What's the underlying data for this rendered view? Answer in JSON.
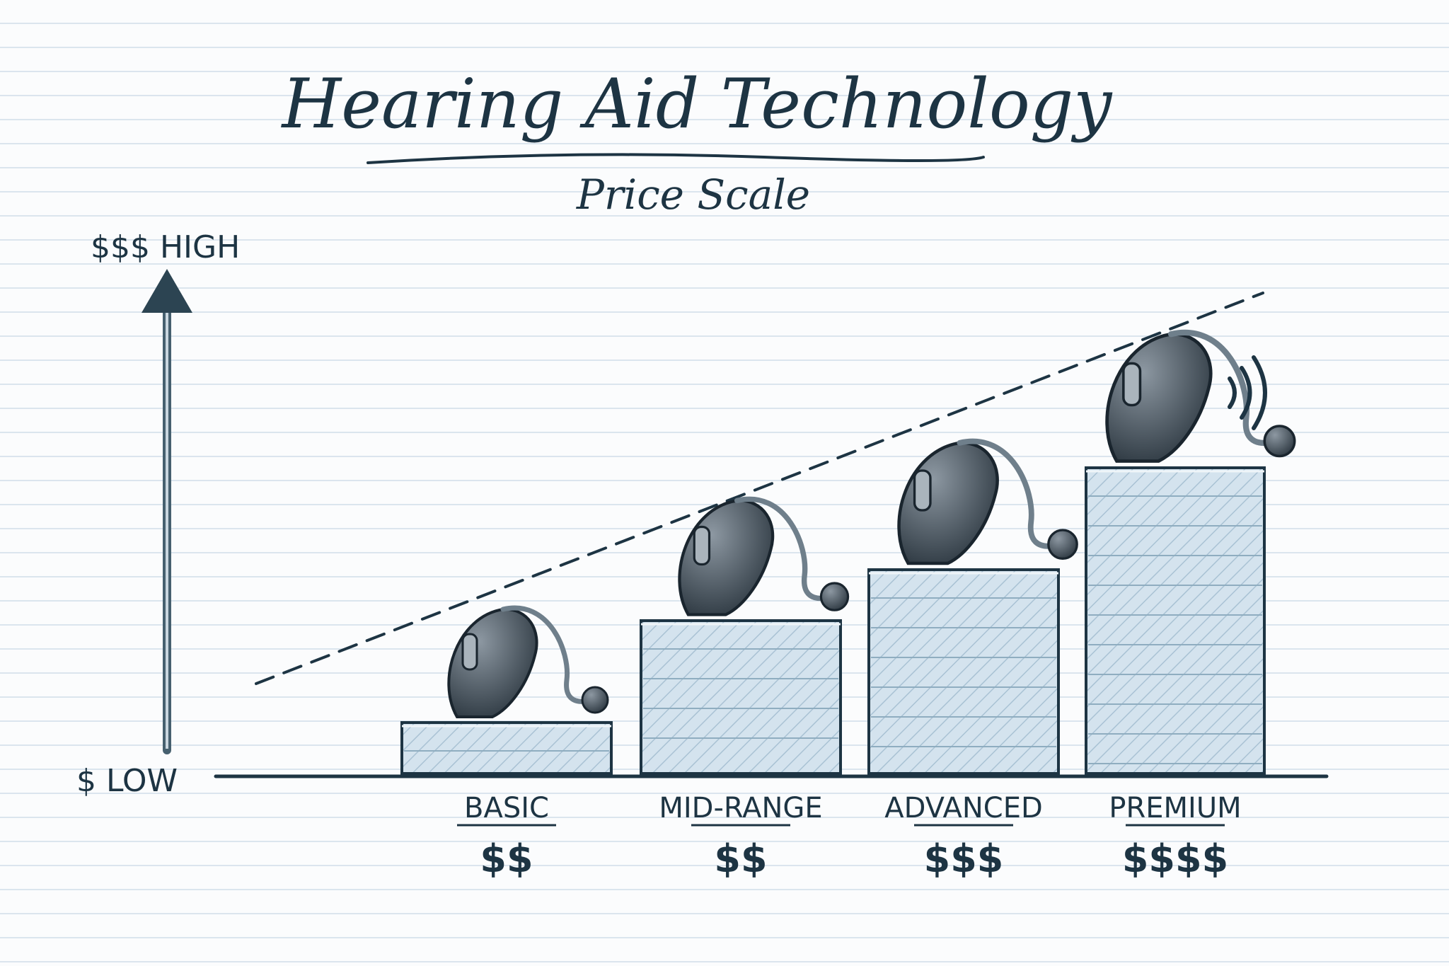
{
  "chart_data": {
    "type": "bar",
    "title": "Hearing Aid Technology",
    "subtitle": "Price Scale",
    "y_axis": {
      "high_label": "$$$ HIGH",
      "low_label": "$ LOW"
    },
    "categories": [
      "BASIC",
      "MID-RANGE",
      "ADVANCED",
      "PREMIUM"
    ],
    "price_labels": [
      "$$",
      "$$",
      "$$$",
      "$$$$"
    ],
    "values": [
      1,
      3,
      4,
      6
    ],
    "ylim": [
      0,
      10
    ],
    "trend_line": {
      "style": "dashed",
      "direction": "rising"
    },
    "grid": false,
    "legend": "none"
  },
  "colors": {
    "ink": "#1d3443",
    "bar_fill": "#d4e3ee",
    "bar_hatch": "#a9c2d4",
    "paper_line": "#dbe5ee",
    "device_body": "#4a5660"
  },
  "icons": [
    "hearing-aid-basic-icon",
    "hearing-aid-mid-range-icon",
    "hearing-aid-advanced-icon",
    "hearing-aid-premium-icon",
    "sound-waves-icon"
  ]
}
